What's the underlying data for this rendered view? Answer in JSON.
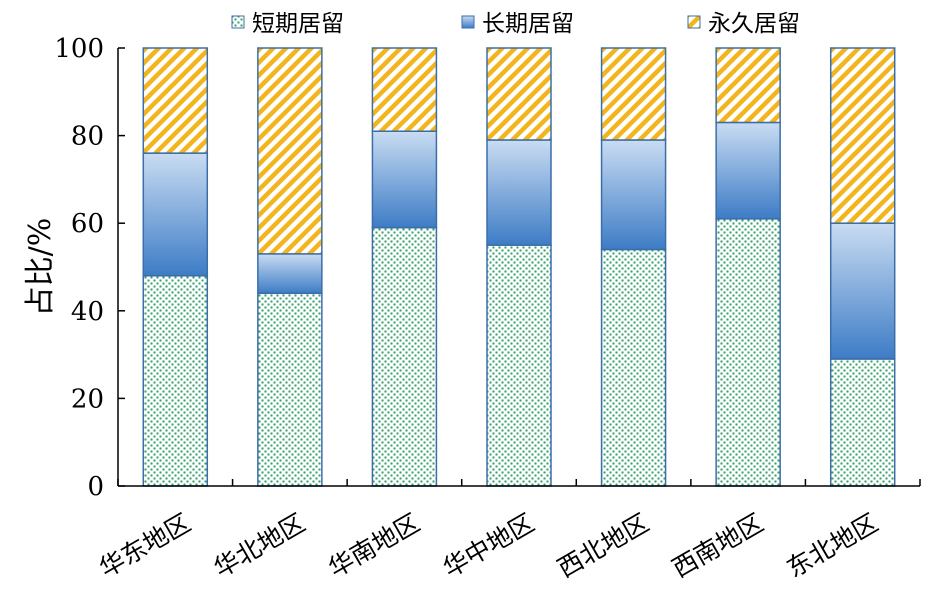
{
  "chart_data": {
    "type": "bar",
    "stacked": true,
    "title": "",
    "xlabel": "",
    "ylabel": "占比/%",
    "ylim": [
      0,
      100
    ],
    "yticks": [
      0,
      20,
      40,
      60,
      80,
      100
    ],
    "grid": false,
    "legend_position": "top",
    "categories": [
      "华东地区",
      "华北地区",
      "华南地区",
      "华中地区",
      "西北地区",
      "西南地区",
      "东北地区"
    ],
    "series": [
      {
        "name": "短期居留",
        "values": [
          48,
          44,
          59,
          55,
          54,
          61,
          29
        ],
        "pattern": "dots",
        "color": "#2e9e6a"
      },
      {
        "name": "长期居留",
        "values": [
          28,
          9,
          22,
          24,
          25,
          22,
          31
        ],
        "pattern": "gradient",
        "color": "#4a86cc"
      },
      {
        "name": "永久居留",
        "values": [
          24,
          47,
          19,
          21,
          21,
          17,
          40
        ],
        "pattern": "diagonal",
        "color": "#f2b51d"
      }
    ]
  }
}
